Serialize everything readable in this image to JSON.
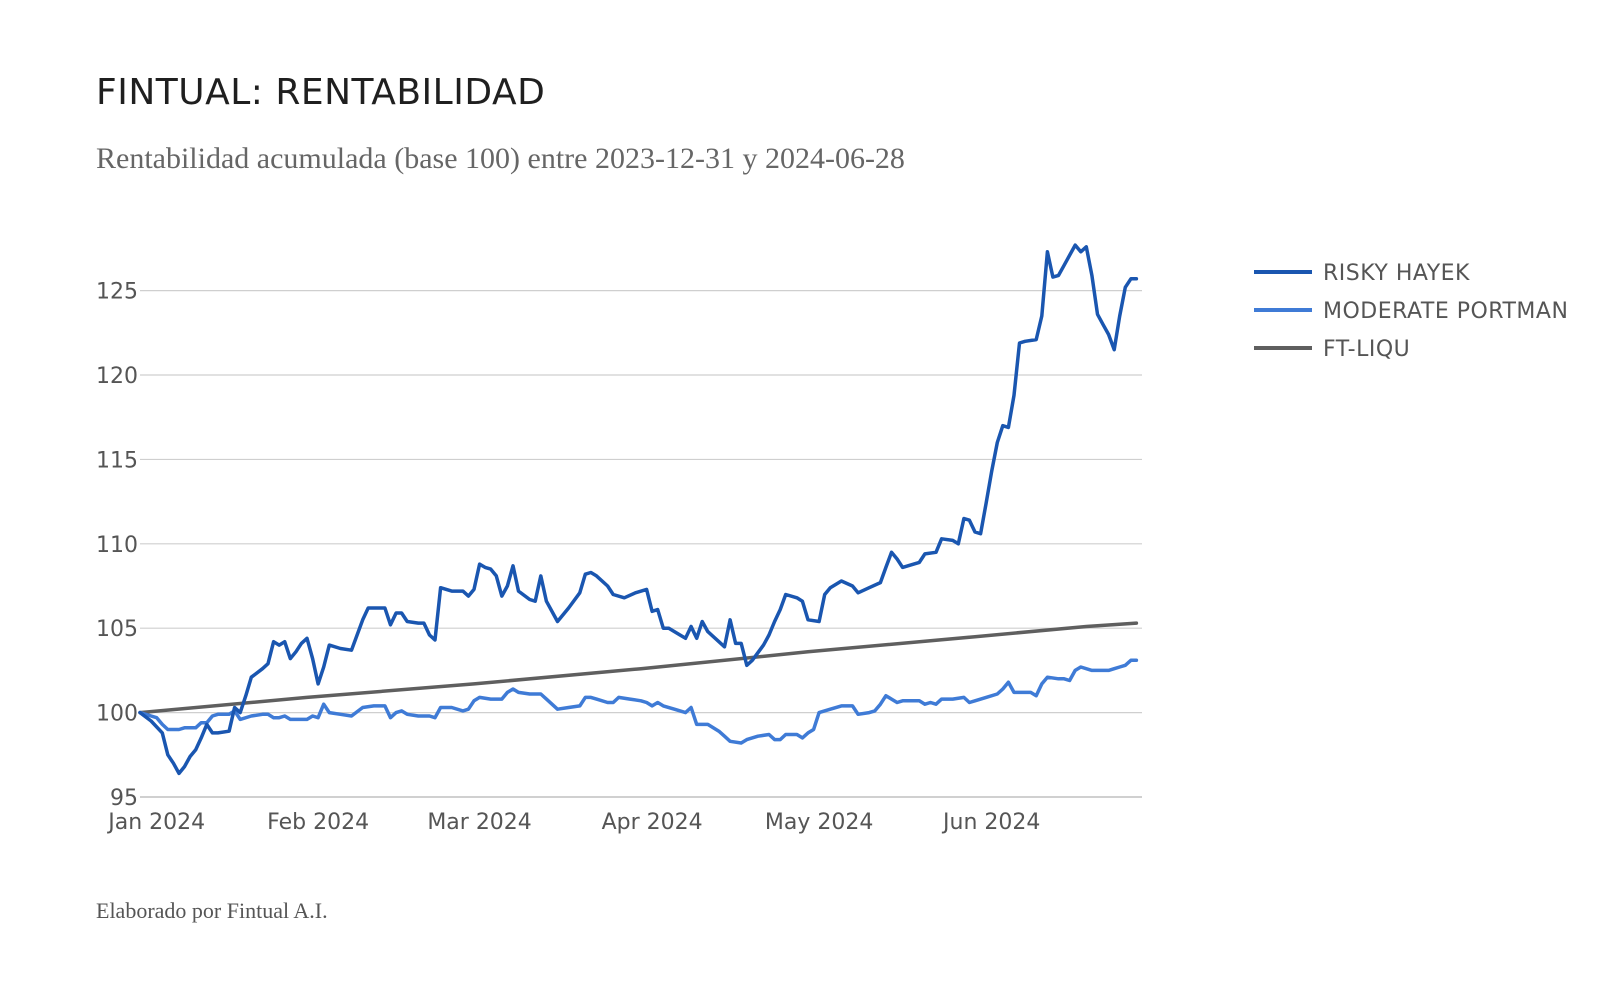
{
  "header": {
    "title": "FINTUAL: RENTABILIDAD",
    "subtitle": "Rentabilidad acumulada (base 100) entre 2023-12-31 y 2024-06-28"
  },
  "footer": {
    "credit": "Elaborado por Fintual A.I."
  },
  "chart_data": {
    "type": "line",
    "title": "FINTUAL: RENTABILIDAD",
    "subtitle": "Rentabilidad acumulada (base 100) entre 2023-12-31 y 2024-06-28",
    "xlabel": "",
    "ylabel": "",
    "x_range_days": [
      0,
      180
    ],
    "ylim": [
      95,
      128
    ],
    "yticks": [
      95,
      100,
      105,
      110,
      115,
      120,
      125
    ],
    "xticks": [
      {
        "day": 3,
        "label": "Jan 2024"
      },
      {
        "day": 32,
        "label": "Feb 2024"
      },
      {
        "day": 61,
        "label": "Mar 2024"
      },
      {
        "day": 92,
        "label": "Apr 2024"
      },
      {
        "day": 122,
        "label": "May 2024"
      },
      {
        "day": 153,
        "label": "Jun 2024"
      }
    ],
    "grid": true,
    "legend_position": "right",
    "series": [
      {
        "name": "RISKY HAYEK",
        "color": "#1a56b0",
        "points": [
          [
            0,
            100
          ],
          [
            2,
            99.5
          ],
          [
            4,
            98.8
          ],
          [
            5,
            97.5
          ],
          [
            6,
            97
          ],
          [
            7,
            96.4
          ],
          [
            8,
            96.8
          ],
          [
            9,
            97.4
          ],
          [
            10,
            97.8
          ],
          [
            11,
            98.5
          ],
          [
            12,
            99.3
          ],
          [
            13,
            98.8
          ],
          [
            14,
            98.8
          ],
          [
            16,
            98.9
          ],
          [
            17,
            100.3
          ],
          [
            18,
            100
          ],
          [
            19,
            101
          ],
          [
            20,
            102.1
          ],
          [
            22,
            102.6
          ],
          [
            23,
            102.9
          ],
          [
            24,
            104.2
          ],
          [
            25,
            104
          ],
          [
            26,
            104.2
          ],
          [
            27,
            103.2
          ],
          [
            28,
            103.6
          ],
          [
            29,
            104.1
          ],
          [
            30,
            104.4
          ],
          [
            31,
            103.2
          ],
          [
            32,
            101.7
          ],
          [
            33,
            102.7
          ],
          [
            34,
            104
          ],
          [
            36,
            103.8
          ],
          [
            38,
            103.7
          ],
          [
            40,
            105.5
          ],
          [
            41,
            106.2
          ],
          [
            42,
            106.2
          ],
          [
            44,
            106.2
          ],
          [
            45,
            105.2
          ],
          [
            46,
            105.9
          ],
          [
            47,
            105.9
          ],
          [
            48,
            105.4
          ],
          [
            50,
            105.3
          ],
          [
            51,
            105.3
          ],
          [
            52,
            104.6
          ],
          [
            53,
            104.3
          ],
          [
            54,
            107.4
          ],
          [
            56,
            107.2
          ],
          [
            58,
            107.2
          ],
          [
            59,
            106.9
          ],
          [
            60,
            107.3
          ],
          [
            61,
            108.8
          ],
          [
            62,
            108.6
          ],
          [
            63,
            108.5
          ],
          [
            64,
            108.1
          ],
          [
            65,
            106.9
          ],
          [
            66,
            107.5
          ],
          [
            67,
            108.7
          ],
          [
            68,
            107.2
          ],
          [
            70,
            106.7
          ],
          [
            71,
            106.6
          ],
          [
            72,
            108.1
          ],
          [
            73,
            106.6
          ],
          [
            75,
            105.4
          ],
          [
            77,
            106.2
          ],
          [
            79,
            107.1
          ],
          [
            80,
            108.2
          ],
          [
            81,
            108.3
          ],
          [
            82,
            108.1
          ],
          [
            84,
            107.5
          ],
          [
            85,
            107
          ],
          [
            87,
            106.8
          ],
          [
            89,
            107.1
          ],
          [
            91,
            107.3
          ],
          [
            92,
            106
          ],
          [
            93,
            106.1
          ],
          [
            94,
            105
          ],
          [
            95,
            105
          ],
          [
            97,
            104.6
          ],
          [
            98,
            104.4
          ],
          [
            99,
            105.1
          ],
          [
            100,
            104.4
          ],
          [
            101,
            105.4
          ],
          [
            102,
            104.8
          ],
          [
            104,
            104.2
          ],
          [
            105,
            103.9
          ],
          [
            106,
            105.5
          ],
          [
            107,
            104.1
          ],
          [
            108,
            104.1
          ],
          [
            109,
            102.8
          ],
          [
            110,
            103.1
          ],
          [
            112,
            104
          ],
          [
            113,
            104.6
          ],
          [
            114,
            105.4
          ],
          [
            115,
            106.1
          ],
          [
            116,
            107
          ],
          [
            118,
            106.8
          ],
          [
            119,
            106.6
          ],
          [
            120,
            105.5
          ],
          [
            122,
            105.4
          ],
          [
            123,
            107
          ],
          [
            124,
            107.4
          ],
          [
            126,
            107.8
          ],
          [
            128,
            107.5
          ],
          [
            129,
            107.1
          ],
          [
            131,
            107.4
          ],
          [
            133,
            107.7
          ],
          [
            134,
            108.6
          ],
          [
            135,
            109.5
          ],
          [
            136,
            109.1
          ],
          [
            137,
            108.6
          ],
          [
            139,
            108.8
          ],
          [
            140,
            108.9
          ],
          [
            141,
            109.4
          ],
          [
            143,
            109.5
          ],
          [
            144,
            110.3
          ],
          [
            146,
            110.2
          ],
          [
            147,
            110
          ],
          [
            148,
            111.5
          ],
          [
            149,
            111.4
          ],
          [
            150,
            110.7
          ],
          [
            151,
            110.6
          ],
          [
            152,
            112.4
          ],
          [
            153,
            114.3
          ],
          [
            154,
            116
          ],
          [
            155,
            117
          ],
          [
            156,
            116.9
          ],
          [
            157,
            118.8
          ],
          [
            158,
            121.9
          ],
          [
            159,
            122
          ],
          [
            161,
            122.1
          ],
          [
            162,
            123.5
          ],
          [
            163,
            127.3
          ],
          [
            164,
            125.8
          ],
          [
            165,
            125.9
          ],
          [
            166,
            126.5
          ],
          [
            168,
            127.7
          ],
          [
            169,
            127.3
          ],
          [
            170,
            127.6
          ],
          [
            171,
            125.9
          ],
          [
            172,
            123.6
          ],
          [
            173,
            123
          ],
          [
            174,
            122.4
          ],
          [
            175,
            121.5
          ],
          [
            176,
            123.5
          ],
          [
            177,
            125.2
          ],
          [
            178,
            125.7
          ],
          [
            179,
            125.7
          ]
        ]
      },
      {
        "name": "MODERATE PORTMAN",
        "color": "#3f7bd6",
        "points": [
          [
            0,
            100
          ],
          [
            2,
            99.8
          ],
          [
            3,
            99.7
          ],
          [
            4,
            99.3
          ],
          [
            5,
            99
          ],
          [
            7,
            99
          ],
          [
            8,
            99.1
          ],
          [
            10,
            99.1
          ],
          [
            11,
            99.4
          ],
          [
            12,
            99.4
          ],
          [
            13,
            99.8
          ],
          [
            14,
            99.9
          ],
          [
            16,
            99.9
          ],
          [
            17,
            100.1
          ],
          [
            18,
            99.6
          ],
          [
            20,
            99.8
          ],
          [
            22,
            99.9
          ],
          [
            23,
            99.9
          ],
          [
            24,
            99.7
          ],
          [
            25,
            99.7
          ],
          [
            26,
            99.8
          ],
          [
            27,
            99.6
          ],
          [
            28,
            99.6
          ],
          [
            30,
            99.6
          ],
          [
            31,
            99.8
          ],
          [
            32,
            99.7
          ],
          [
            33,
            100.5
          ],
          [
            34,
            100
          ],
          [
            36,
            99.9
          ],
          [
            38,
            99.8
          ],
          [
            40,
            100.3
          ],
          [
            42,
            100.4
          ],
          [
            44,
            100.4
          ],
          [
            45,
            99.7
          ],
          [
            46,
            100
          ],
          [
            47,
            100.1
          ],
          [
            48,
            99.9
          ],
          [
            50,
            99.8
          ],
          [
            52,
            99.8
          ],
          [
            53,
            99.7
          ],
          [
            54,
            100.3
          ],
          [
            56,
            100.3
          ],
          [
            58,
            100.1
          ],
          [
            59,
            100.2
          ],
          [
            60,
            100.7
          ],
          [
            61,
            100.9
          ],
          [
            63,
            100.8
          ],
          [
            65,
            100.8
          ],
          [
            66,
            101.2
          ],
          [
            67,
            101.4
          ],
          [
            68,
            101.2
          ],
          [
            70,
            101.1
          ],
          [
            72,
            101.1
          ],
          [
            73,
            100.8
          ],
          [
            75,
            100.2
          ],
          [
            77,
            100.3
          ],
          [
            79,
            100.4
          ],
          [
            80,
            100.9
          ],
          [
            81,
            100.9
          ],
          [
            82,
            100.8
          ],
          [
            84,
            100.6
          ],
          [
            85,
            100.6
          ],
          [
            86,
            100.9
          ],
          [
            88,
            100.8
          ],
          [
            90,
            100.7
          ],
          [
            91,
            100.6
          ],
          [
            92,
            100.4
          ],
          [
            93,
            100.6
          ],
          [
            94,
            100.4
          ],
          [
            96,
            100.2
          ],
          [
            98,
            100
          ],
          [
            99,
            100.3
          ],
          [
            100,
            99.3
          ],
          [
            102,
            99.3
          ],
          [
            104,
            98.9
          ],
          [
            105,
            98.6
          ],
          [
            106,
            98.3
          ],
          [
            108,
            98.2
          ],
          [
            109,
            98.4
          ],
          [
            111,
            98.6
          ],
          [
            113,
            98.7
          ],
          [
            114,
            98.4
          ],
          [
            115,
            98.4
          ],
          [
            116,
            98.7
          ],
          [
            118,
            98.7
          ],
          [
            119,
            98.5
          ],
          [
            120,
            98.8
          ],
          [
            121,
            99
          ],
          [
            122,
            100
          ],
          [
            124,
            100.2
          ],
          [
            126,
            100.4
          ],
          [
            128,
            100.4
          ],
          [
            129,
            99.9
          ],
          [
            131,
            100
          ],
          [
            132,
            100.1
          ],
          [
            133,
            100.5
          ],
          [
            134,
            101
          ],
          [
            135,
            100.8
          ],
          [
            136,
            100.6
          ],
          [
            137,
            100.7
          ],
          [
            139,
            100.7
          ],
          [
            140,
            100.7
          ],
          [
            141,
            100.5
          ],
          [
            142,
            100.6
          ],
          [
            143,
            100.5
          ],
          [
            144,
            100.8
          ],
          [
            146,
            100.8
          ],
          [
            148,
            100.9
          ],
          [
            149,
            100.6
          ],
          [
            150,
            100.7
          ],
          [
            152,
            100.9
          ],
          [
            154,
            101.1
          ],
          [
            155,
            101.4
          ],
          [
            156,
            101.8
          ],
          [
            157,
            101.2
          ],
          [
            158,
            101.2
          ],
          [
            160,
            101.2
          ],
          [
            161,
            101
          ],
          [
            162,
            101.7
          ],
          [
            163,
            102.1
          ],
          [
            165,
            102
          ],
          [
            166,
            102
          ],
          [
            167,
            101.9
          ],
          [
            168,
            102.5
          ],
          [
            169,
            102.7
          ],
          [
            171,
            102.5
          ],
          [
            172,
            102.5
          ],
          [
            174,
            102.5
          ],
          [
            175,
            102.6
          ],
          [
            176,
            102.7
          ],
          [
            177,
            102.8
          ],
          [
            178,
            103.1
          ],
          [
            179,
            103.1
          ]
        ]
      },
      {
        "name": "FT-LIQU",
        "color": "#5f5f5f",
        "points": [
          [
            0,
            100
          ],
          [
            30,
            100.9
          ],
          [
            60,
            101.7
          ],
          [
            90,
            102.6
          ],
          [
            120,
            103.6
          ],
          [
            150,
            104.5
          ],
          [
            170,
            105.1
          ],
          [
            179,
            105.3
          ]
        ]
      }
    ]
  }
}
